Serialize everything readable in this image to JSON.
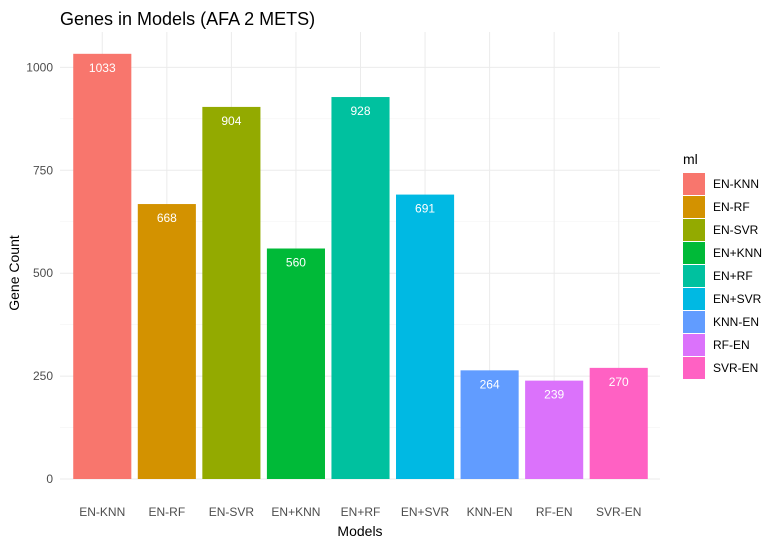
{
  "chart_data": {
    "type": "bar",
    "title": "Genes in Models (AFA 2 METS)",
    "xlabel": "Models",
    "ylabel": "Gene Count",
    "categories": [
      "EN-KNN",
      "EN-RF",
      "EN-SVR",
      "EN+KNN",
      "EN+RF",
      "EN+SVR",
      "KNN-EN",
      "RF-EN",
      "SVR-EN"
    ],
    "values": [
      1033,
      668,
      904,
      560,
      928,
      691,
      264,
      239,
      270
    ],
    "colors": [
      "#F8766D",
      "#D39200",
      "#93AA00",
      "#00BA38",
      "#00C19F",
      "#00B9E3",
      "#619CFF",
      "#DB72FB",
      "#FF61C3"
    ],
    "ylim": [
      0,
      1084
    ],
    "yticks": [
      0,
      250,
      500,
      750,
      1000
    ],
    "grid": true,
    "legend": {
      "title": "ml",
      "placement": "right",
      "entries": [
        "EN-KNN",
        "EN-RF",
        "EN-SVR",
        "EN+KNN",
        "EN+RF",
        "EN+SVR",
        "KNN-EN",
        "RF-EN",
        "SVR-EN"
      ]
    }
  }
}
